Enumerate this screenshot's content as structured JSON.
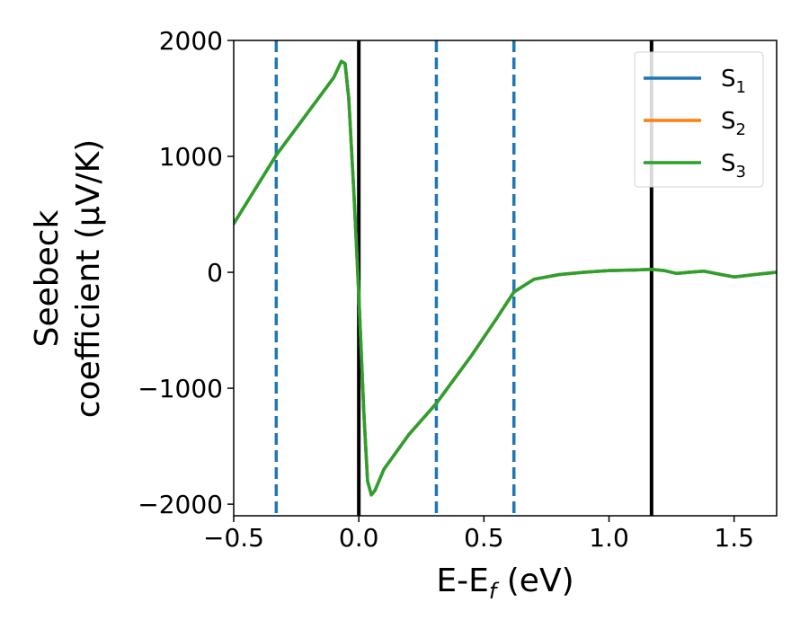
{
  "chart_data": {
    "type": "line",
    "title": "",
    "xlabel": "E-E_f (eV)",
    "xlabel_parts": {
      "main": "E-E",
      "sub": "f",
      "unit": " (eV)"
    },
    "ylabel_lines": [
      "Seebeck",
      "coefficient  (μV/K)"
    ],
    "xlim": [
      -0.5,
      1.67
    ],
    "ylim": [
      -2100,
      2000
    ],
    "xticks": [
      -0.5,
      0.0,
      0.5,
      1.0,
      1.5
    ],
    "xtick_labels": [
      "−0.5",
      "0.0",
      "0.5",
      "1.0",
      "1.5"
    ],
    "yticks": [
      2000,
      1000,
      0,
      -1000,
      -2000
    ],
    "ytick_labels": [
      "2000",
      "1000",
      "0",
      "−1000",
      "−2000"
    ],
    "grid": false,
    "legend_position": "top-right",
    "series": [
      {
        "name": "S_1",
        "label_main": "S",
        "label_sub": "1",
        "color": "#1f77b4",
        "x": [
          -0.5,
          -0.33,
          -0.1,
          -0.07,
          -0.055,
          -0.04,
          -0.02,
          0.0,
          0.02,
          0.035,
          0.05,
          0.065,
          0.1,
          0.2,
          0.31,
          0.45,
          0.55,
          0.62,
          0.7,
          0.8,
          0.9,
          1.0,
          1.1,
          1.17,
          1.22,
          1.27,
          1.32,
          1.38,
          1.45,
          1.5,
          1.6,
          1.67
        ],
        "y": [
          420,
          1010,
          1680,
          1820,
          1800,
          1500,
          700,
          -200,
          -1200,
          -1800,
          -1920,
          -1880,
          -1700,
          -1400,
          -1130,
          -720,
          -400,
          -170,
          -60,
          -20,
          0,
          15,
          20,
          25,
          15,
          -10,
          0,
          10,
          -20,
          -40,
          -15,
          0
        ]
      },
      {
        "name": "S_2",
        "label_main": "S",
        "label_sub": "2",
        "color": "#ff7f0e",
        "x": [
          -0.5,
          -0.33,
          -0.1,
          -0.07,
          -0.055,
          -0.04,
          -0.02,
          0.0,
          0.02,
          0.035,
          0.05,
          0.065,
          0.1,
          0.2,
          0.31,
          0.45,
          0.55,
          0.62,
          0.7,
          0.8,
          0.9,
          1.0,
          1.1,
          1.17,
          1.22,
          1.27,
          1.32,
          1.38,
          1.45,
          1.5,
          1.6,
          1.67
        ],
        "y": [
          420,
          1010,
          1680,
          1820,
          1800,
          1500,
          700,
          -200,
          -1200,
          -1800,
          -1920,
          -1880,
          -1700,
          -1400,
          -1130,
          -720,
          -400,
          -170,
          -60,
          -20,
          0,
          15,
          20,
          25,
          15,
          -10,
          0,
          10,
          -20,
          -40,
          -15,
          0
        ]
      },
      {
        "name": "S_3",
        "label_main": "S",
        "label_sub": "3",
        "color": "#2ca02c",
        "x": [
          -0.5,
          -0.33,
          -0.1,
          -0.07,
          -0.055,
          -0.04,
          -0.02,
          0.0,
          0.02,
          0.035,
          0.05,
          0.065,
          0.1,
          0.2,
          0.31,
          0.45,
          0.55,
          0.62,
          0.7,
          0.8,
          0.9,
          1.0,
          1.1,
          1.17,
          1.22,
          1.27,
          1.32,
          1.38,
          1.45,
          1.5,
          1.6,
          1.67
        ],
        "y": [
          420,
          1010,
          1680,
          1820,
          1800,
          1500,
          700,
          -200,
          -1200,
          -1800,
          -1920,
          -1880,
          -1700,
          -1400,
          -1130,
          -720,
          -400,
          -170,
          -60,
          -20,
          0,
          15,
          20,
          25,
          15,
          -10,
          0,
          10,
          -20,
          -40,
          -15,
          0
        ]
      }
    ],
    "vlines": [
      {
        "x": 0.0,
        "style": "solid",
        "color": "#000000"
      },
      {
        "x": 1.17,
        "style": "solid",
        "color": "#000000"
      },
      {
        "x": -0.33,
        "style": "dashed",
        "color": "#1f77b4"
      },
      {
        "x": 0.31,
        "style": "dashed",
        "color": "#1f77b4"
      },
      {
        "x": 0.62,
        "style": "dashed",
        "color": "#1f77b4"
      }
    ]
  }
}
